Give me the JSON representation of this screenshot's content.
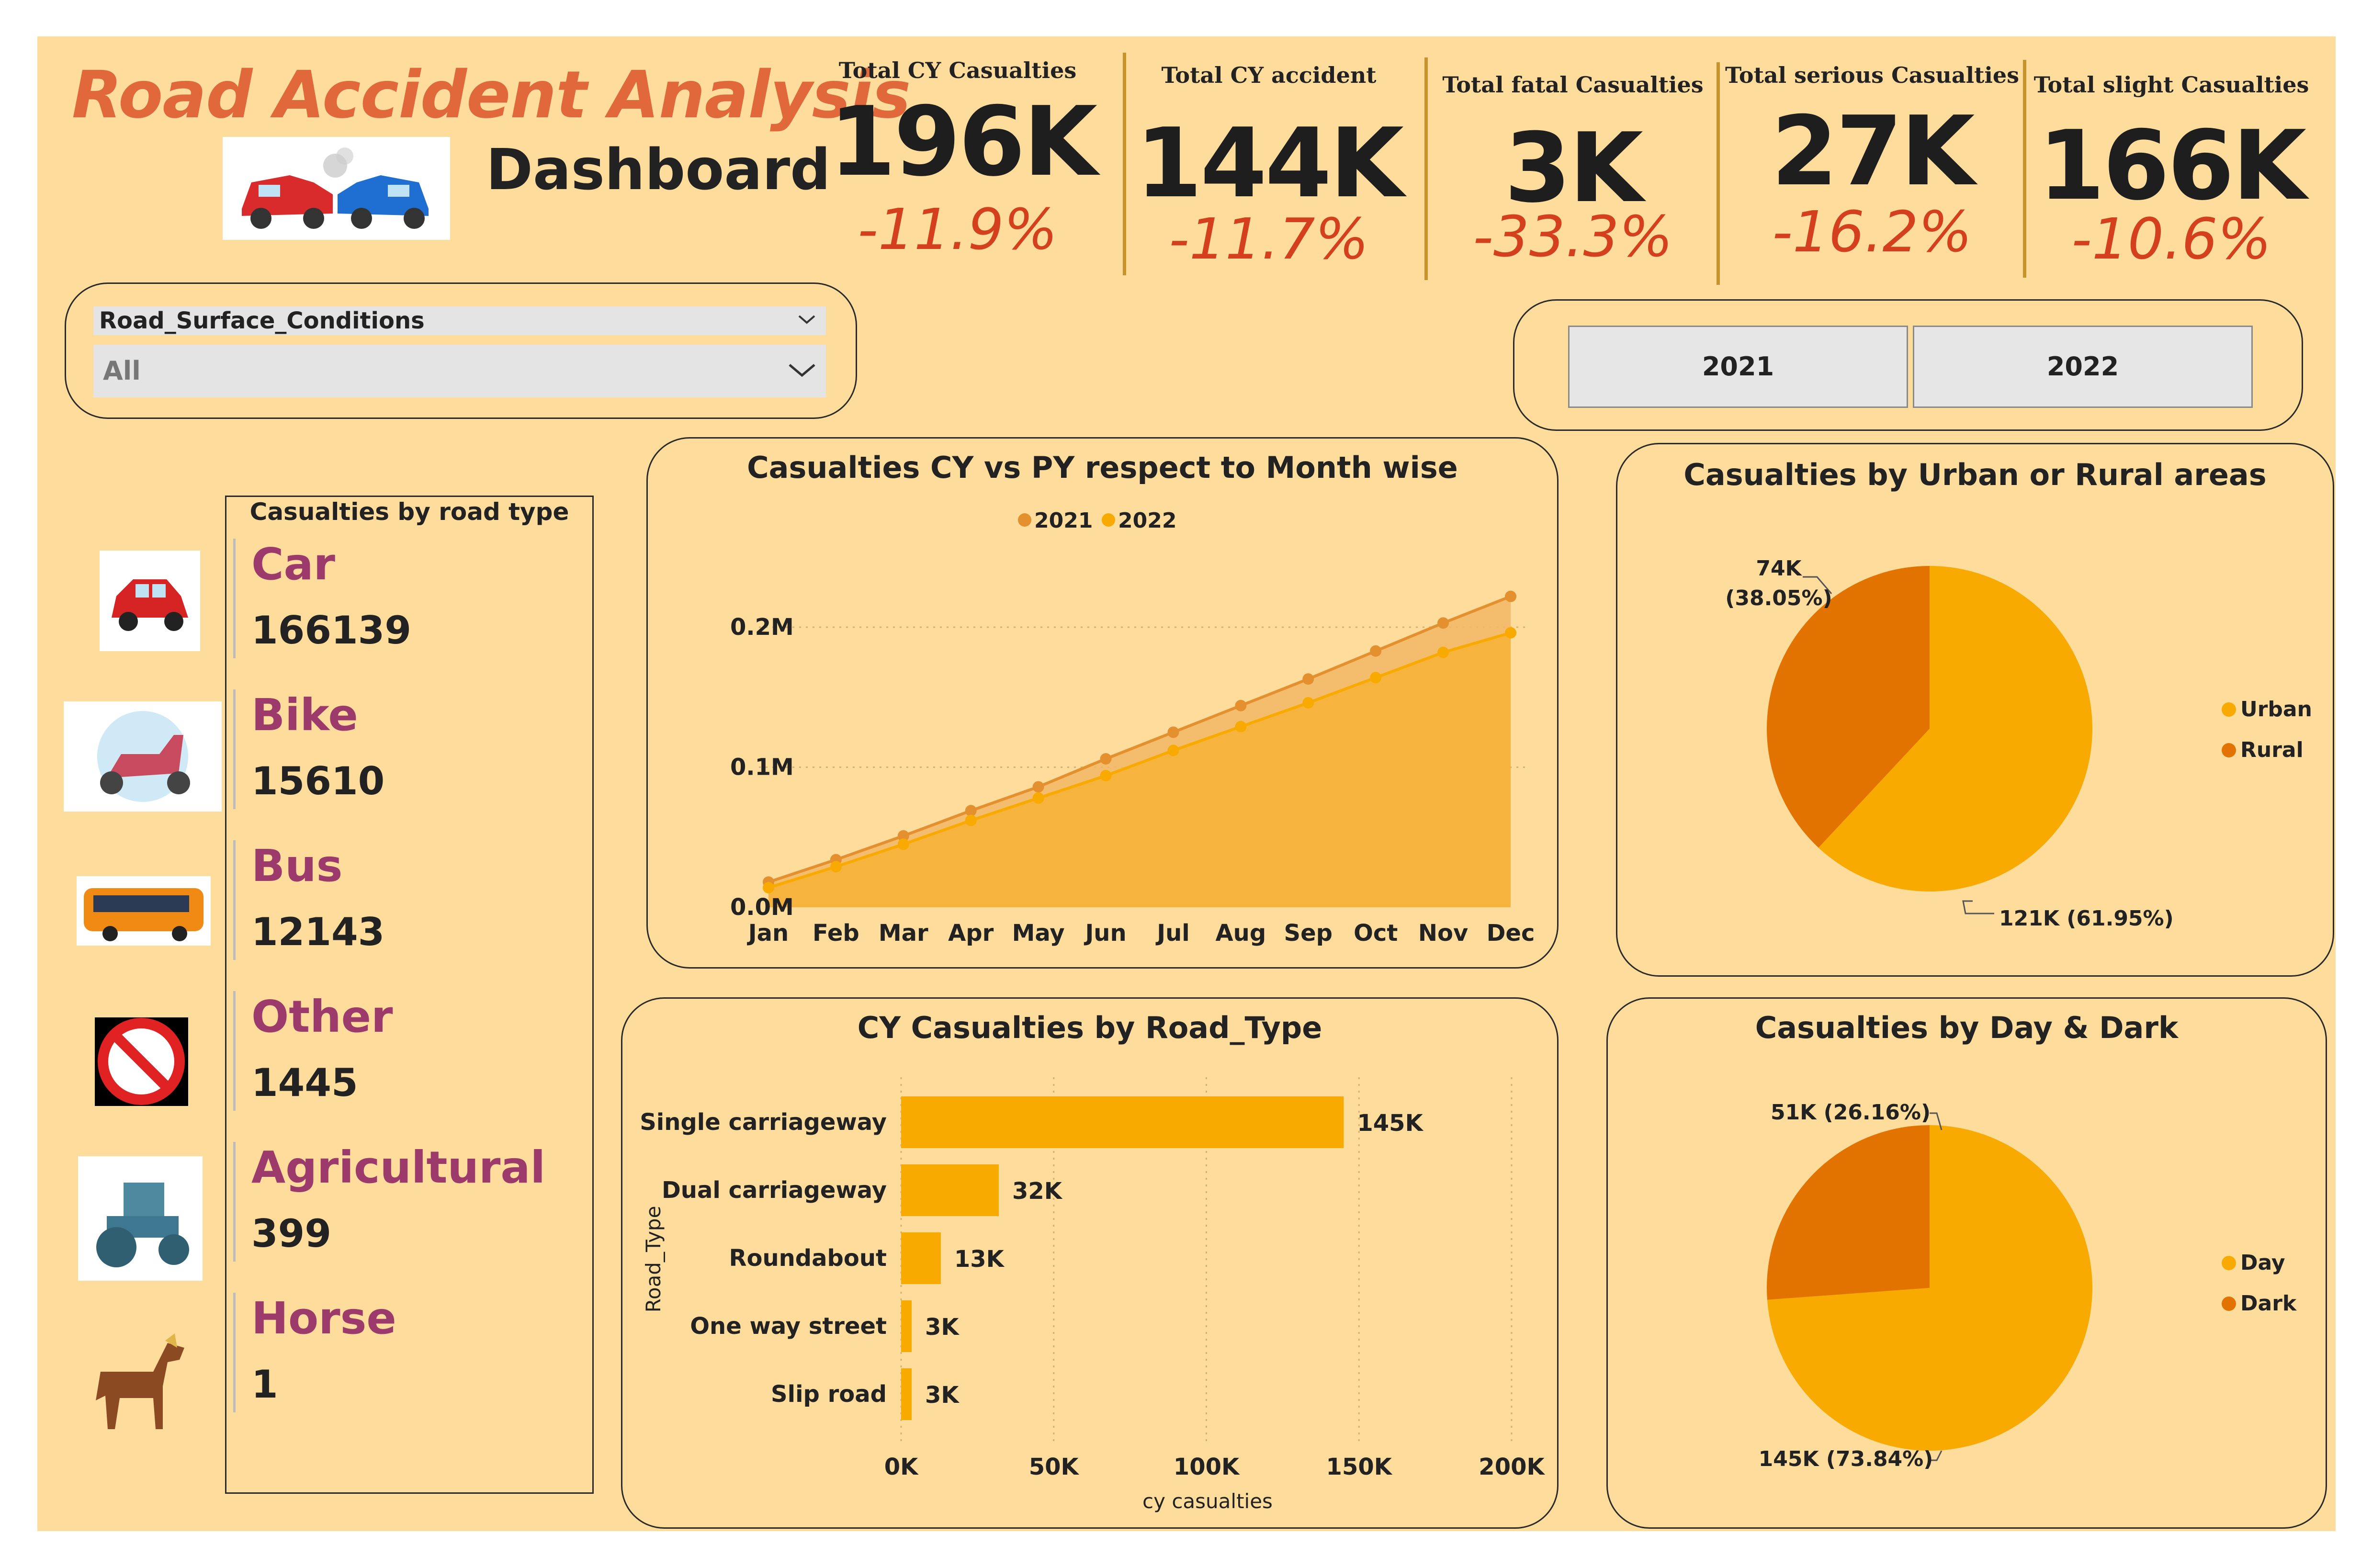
{
  "header": {
    "title": "Road Accident Analysis",
    "subtitle": "Dashboard"
  },
  "kpis": [
    {
      "label": "Total CY Casualties",
      "value": "196K",
      "change": "-11.9%"
    },
    {
      "label": "Total CY accident",
      "value": "144K",
      "change": "-11.7%"
    },
    {
      "label": "Total fatal Casualties",
      "value": "3K",
      "change": "-33.3%"
    },
    {
      "label": "Total serious Casualties",
      "value": "27K",
      "change": "-16.2%"
    },
    {
      "label": "Total slight Casualties",
      "value": "166K",
      "change": "-10.6%"
    }
  ],
  "slicer": {
    "label": "Road_Surface_Conditions",
    "selected": "All",
    "chevron_icon": "chevron-down-icon"
  },
  "year_buttons": [
    "2021",
    "2022"
  ],
  "vehicle_panel": {
    "title": "Casualties by road type",
    "items": [
      {
        "label": "Car",
        "value": "166139",
        "icon": "car-icon"
      },
      {
        "label": "Bike",
        "value": "15610",
        "icon": "scooter-icon"
      },
      {
        "label": "Bus",
        "value": "12143",
        "icon": "bus-icon"
      },
      {
        "label": "Other",
        "value": "1445",
        "icon": "prohibited-icon"
      },
      {
        "label": "Agricultural",
        "value": "399",
        "icon": "tractor-icon"
      },
      {
        "label": "Horse",
        "value": "1",
        "icon": "horse-icon"
      }
    ]
  },
  "colors": {
    "background": "#fddc9c",
    "orange_dark": "#e4802e",
    "orange_light": "#f9aa00",
    "urban": "#f9aa00",
    "rural": "#e37300",
    "kpi_change": "#d4401e",
    "vehicle_label": "#9b3a6b"
  },
  "chart_data": [
    {
      "type": "area",
      "title": "Casualties CY vs PY respect to Month wise",
      "categories": [
        "Jan",
        "Feb",
        "Mar",
        "Apr",
        "May",
        "Jun",
        "Jul",
        "Aug",
        "Sep",
        "Oct",
        "Nov",
        "Dec"
      ],
      "series": [
        {
          "name": "2021",
          "color": "#e4902e",
          "values": [
            18000,
            34000,
            51000,
            69000,
            86000,
            106000,
            125000,
            144000,
            163000,
            183000,
            203000,
            222000
          ]
        },
        {
          "name": "2022",
          "color": "#f9aa00",
          "values": [
            14000,
            29000,
            45000,
            62000,
            78000,
            94000,
            112000,
            129000,
            146000,
            164000,
            182000,
            196000
          ]
        }
      ],
      "yticks": [
        "0.0M",
        "0.1M",
        "0.2M"
      ],
      "ylim": [
        0,
        200000
      ],
      "grid": true,
      "legend": "top"
    },
    {
      "type": "pie",
      "title": "Casualties by Urban or Rural areas",
      "slices": [
        {
          "name": "Urban",
          "value": 121,
          "label": "121K (61.95%)",
          "percent": 61.95,
          "color": "#f9aa00"
        },
        {
          "name": "Rural",
          "value": 74,
          "label": "74K\n(38.05%)",
          "label_line1": "74K",
          "label_line2": "(38.05%)",
          "percent": 38.05,
          "color": "#e37300"
        }
      ],
      "legend": "right"
    },
    {
      "type": "bar",
      "orientation": "horizontal",
      "title": "CY Casualties by Road_Type",
      "categories": [
        "Single carriageway",
        "Dual carriageway",
        "Roundabout",
        "One way street",
        "Slip road"
      ],
      "values": [
        145000,
        32000,
        13000,
        3000,
        3000
      ],
      "data_labels": [
        "145K",
        "32K",
        "13K",
        "3K",
        "3K"
      ],
      "xticks": [
        "0K",
        "50K",
        "100K",
        "150K",
        "200K"
      ],
      "xlim": [
        0,
        200000
      ],
      "xlabel": "cy casualties",
      "ylabel": "Road_Type",
      "color": "#f9aa00"
    },
    {
      "type": "pie",
      "title": "Casualties by Day & Dark",
      "slices": [
        {
          "name": "Day",
          "value": 145,
          "label": "145K (73.84%)",
          "percent": 73.84,
          "color": "#f9aa00"
        },
        {
          "name": "Dark",
          "value": 51,
          "label": "51K (26.16%)",
          "percent": 26.16,
          "color": "#e37300"
        }
      ],
      "legend": "right"
    }
  ]
}
